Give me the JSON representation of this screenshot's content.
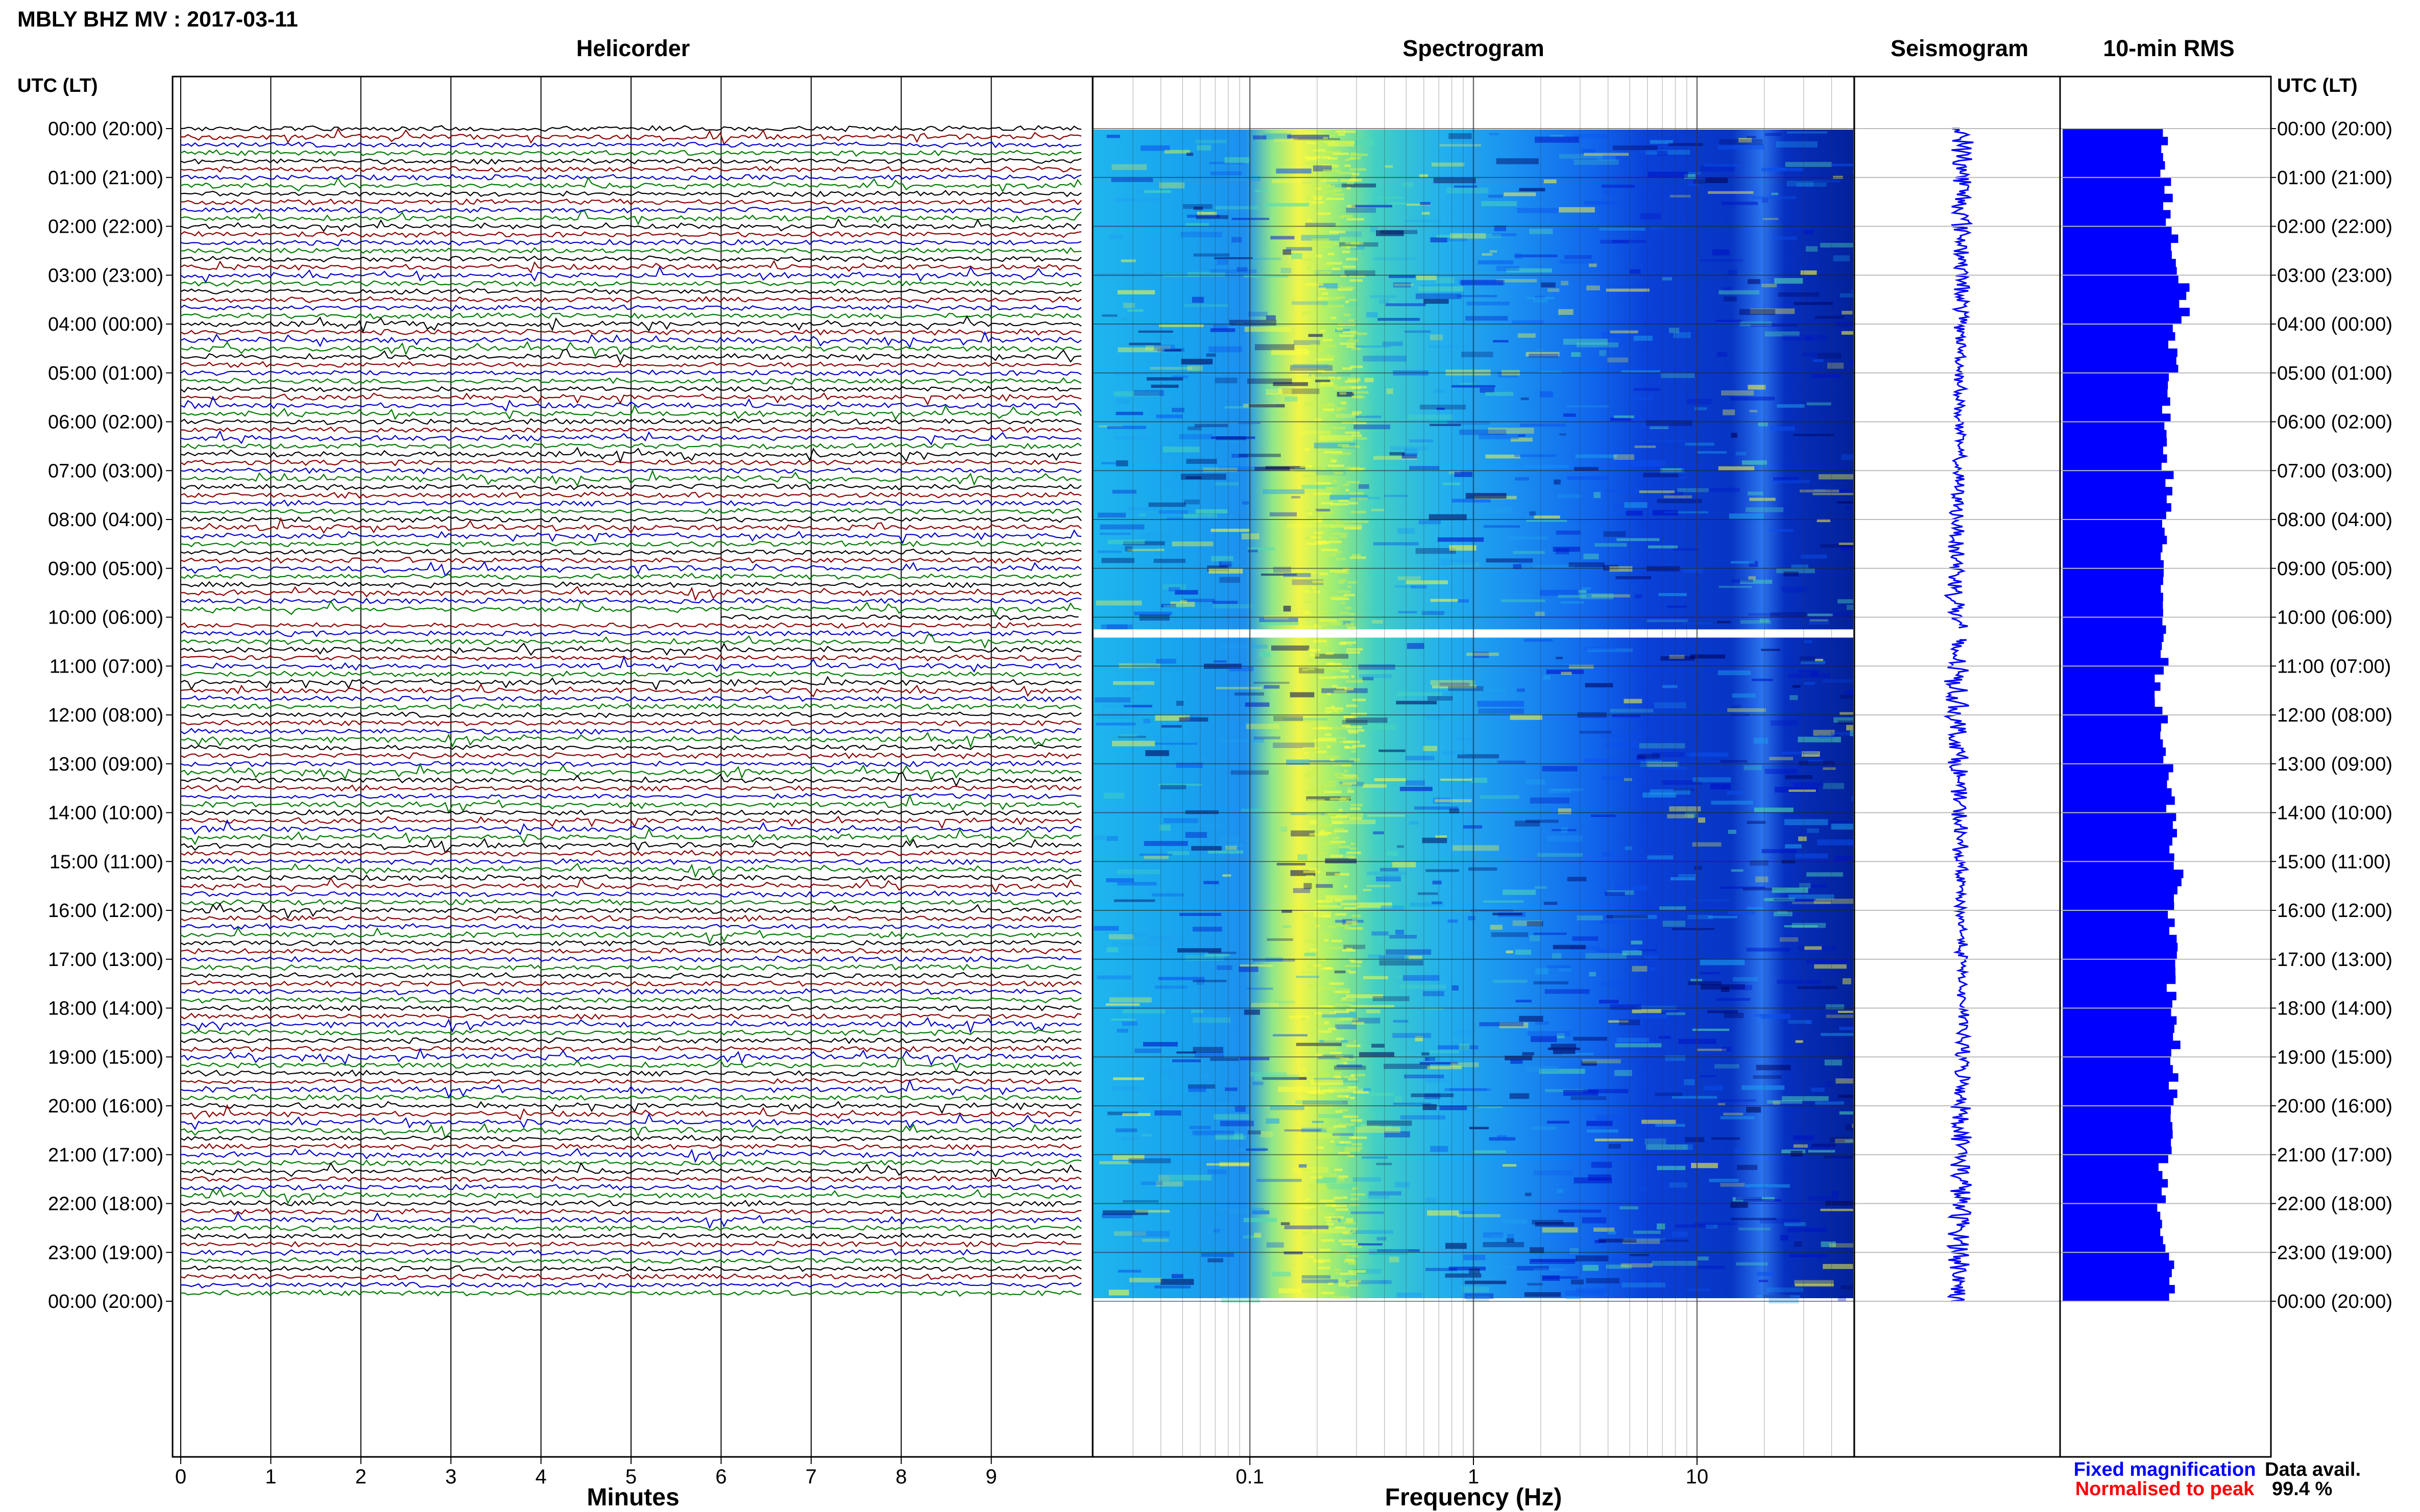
{
  "title": "MBLY BHZ MV : 2017-03-11",
  "time_axis": {
    "left_header": "UTC (LT)",
    "right_header": "UTC (LT)",
    "labels": [
      "00:00 (20:00)",
      "01:00 (21:00)",
      "02:00 (22:00)",
      "03:00 (23:00)",
      "04:00 (00:00)",
      "05:00 (01:00)",
      "06:00 (02:00)",
      "07:00 (03:00)",
      "08:00 (04:00)",
      "09:00 (05:00)",
      "10:00 (06:00)",
      "11:00 (07:00)",
      "12:00 (08:00)",
      "13:00 (09:00)",
      "14:00 (10:00)",
      "15:00 (11:00)",
      "16:00 (12:00)",
      "17:00 (13:00)",
      "18:00 (14:00)",
      "19:00 (15:00)",
      "20:00 (16:00)",
      "21:00 (17:00)",
      "22:00 (18:00)",
      "23:00 (19:00)",
      "00:00 (20:00)"
    ]
  },
  "legend": {
    "fixed": "Fixed magnification",
    "normalised": "Normalised to peak",
    "fixed_color": "#0000ff",
    "normalised_color": "#ff0000",
    "availability_label": "Data avail.",
    "availability_value": "99.4 %"
  },
  "chart_data": [
    {
      "type": "line",
      "title": "Helicorder",
      "xlabel": "Minutes",
      "x_ticks": [
        "0",
        "1",
        "2",
        "3",
        "4",
        "5",
        "6",
        "7",
        "8",
        "9"
      ],
      "xlim": [
        0,
        10
      ],
      "row_minutes": 10,
      "hours": 24,
      "trace_colors": [
        "#000000",
        "#8b0000",
        "#0000cc",
        "#007a00"
      ],
      "data_gap": {
        "start_utc": "10:00",
        "end_minute": 6
      },
      "grid": true
    },
    {
      "type": "heatmap",
      "title": "Spectrogram",
      "xlabel": "Frequency (Hz)",
      "x_scale": "log",
      "xlim": [
        0.02,
        50
      ],
      "x_ticks": [
        "0.1",
        "1",
        "10"
      ],
      "colormap": [
        "#00005a",
        "#0010c8",
        "#0a50f0",
        "#1ea0f0",
        "#50dcb4",
        "#ffff3c"
      ],
      "data_gap_utc": "10:20",
      "grid": true
    },
    {
      "type": "line",
      "title": "Seismogram",
      "trace_color": "#0000ff",
      "data_gap_utc": "10:20"
    },
    {
      "type": "bar",
      "title": "10-min RMS",
      "orientation": "horizontal",
      "bar_color": "#0000ff",
      "relative_values": [
        0.5,
        0.52,
        0.55,
        0.6,
        0.55,
        0.52,
        0.5,
        0.53,
        0.5,
        0.49,
        0.5,
        0.48,
        0.51,
        0.53,
        0.55,
        0.58,
        0.55,
        0.54,
        0.56,
        0.55,
        0.52,
        0.5,
        0.49,
        0.53
      ]
    }
  ]
}
